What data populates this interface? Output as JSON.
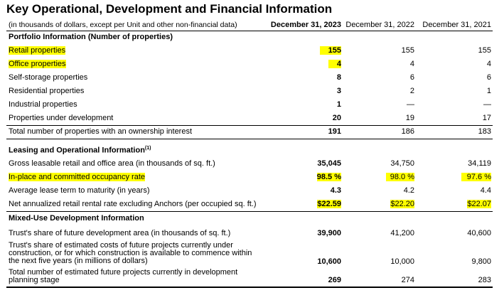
{
  "title": "Key Operational, Development and Financial Information",
  "header": {
    "note": "(in thousands of dollars, except per Unit and other non-financial data)",
    "col1": "December 31, 2023",
    "col2": "December 31, 2022",
    "col3": "December 31, 2021"
  },
  "sections": {
    "portfolio": "Portfolio Information (Number of properties)",
    "leasing": "Leasing and Operational Information",
    "leasing_sup": "(1)",
    "mixed": "Mixed-Use Development Information"
  },
  "rows": [
    {
      "label": "Retail properties",
      "v1": "155",
      "v2": "155",
      "v3": "155"
    },
    {
      "label": "Office properties",
      "v1": "4",
      "v2": "4",
      "v3": "4"
    },
    {
      "label": "Self-storage properties",
      "v1": "8",
      "v2": "6",
      "v3": "6"
    },
    {
      "label": "Residential properties",
      "v1": "3",
      "v2": "2",
      "v3": "1"
    },
    {
      "label": "Industrial properties",
      "v1": "1",
      "v2": "—",
      "v3": "—"
    },
    {
      "label": "Properties under development",
      "v1": "20",
      "v2": "19",
      "v3": "17"
    },
    {
      "label": "Total number of properties with an ownership interest",
      "v1": "191",
      "v2": "186",
      "v3": "183"
    },
    {
      "label": "Gross leasable retail and office area (in thousands of sq. ft.)",
      "v1": "35,045",
      "v2": "34,750",
      "v3": "34,119"
    },
    {
      "label": "In-place and committed occupancy rate",
      "v1": "98.5 %",
      "v2": "98.0 %",
      "v3": "97.6 %"
    },
    {
      "label": "Average lease term to maturity (in years)",
      "v1": "4.3",
      "v2": "4.2",
      "v3": "4.4"
    },
    {
      "label": "Net annualized retail rental rate excluding Anchors (per occupied sq. ft.)",
      "v1": "$22.59",
      "v2": "$22.20",
      "v3": "$22.07"
    },
    {
      "label": "Trust's share of future development area (in thousands of sq. ft.)",
      "v1": "39,900",
      "v2": "41,200",
      "v3": "40,600"
    },
    {
      "label": "Trust's share of estimated costs of future projects currently under construction, or for which construction is available to commence within the next five years (in millions of dollars)",
      "v1": "10,600",
      "v2": "10,000",
      "v3": "9,800"
    },
    {
      "label": "Total number of estimated future projects currently in development planning stage",
      "v1": "269",
      "v2": "274",
      "v3": "283"
    }
  ],
  "highlight_color": "#ffff00"
}
